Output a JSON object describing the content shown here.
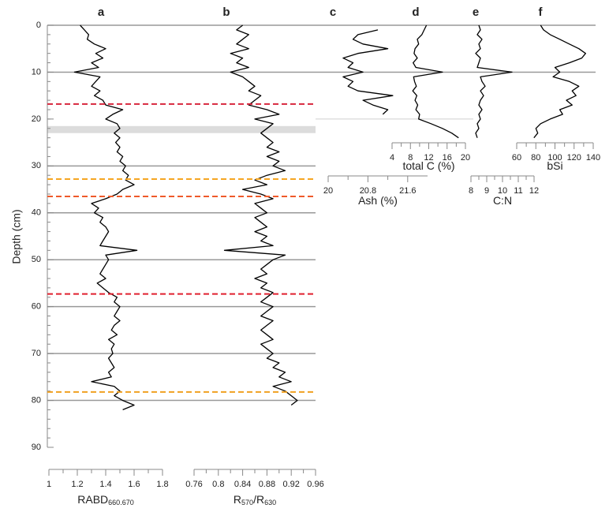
{
  "chart_data": [
    {
      "type": "line",
      "title": "a",
      "xlabel": [
        {
          "text": "RABD",
          "sub": false
        },
        {
          "text": "660.670",
          "sub": true
        }
      ],
      "xlim": [
        1,
        1.8
      ],
      "xticks": [
        1,
        1.2,
        1.4,
        1.6,
        1.8
      ],
      "color": "#000000",
      "depth": [
        0,
        1,
        2,
        3,
        4,
        5,
        6,
        7,
        8,
        9,
        10,
        11,
        12,
        13,
        14,
        15,
        16,
        17,
        18,
        19,
        20,
        21,
        22,
        23,
        24,
        25,
        26,
        27,
        28,
        29,
        30,
        31,
        32,
        33,
        34,
        35,
        36,
        37,
        38,
        39,
        40,
        41,
        42,
        43,
        44,
        45,
        46,
        47,
        48,
        49,
        50,
        51,
        52,
        53,
        54,
        55,
        56,
        57,
        58,
        59,
        60,
        61,
        62,
        63,
        64,
        65,
        66,
        67,
        68,
        69,
        70,
        71,
        72,
        73,
        74,
        75,
        76,
        77,
        78,
        79,
        80,
        81,
        82
      ],
      "values": [
        1.22,
        1.25,
        1.28,
        1.27,
        1.32,
        1.4,
        1.33,
        1.38,
        1.3,
        1.35,
        1.18,
        1.36,
        1.33,
        1.3,
        1.36,
        1.32,
        1.38,
        1.4,
        1.52,
        1.45,
        1.4,
        1.48,
        1.5,
        1.46,
        1.5,
        1.47,
        1.5,
        1.48,
        1.52,
        1.5,
        1.54,
        1.52,
        1.56,
        1.54,
        1.6,
        1.52,
        1.48,
        1.4,
        1.3,
        1.35,
        1.32,
        1.38,
        1.36,
        1.4,
        1.42,
        1.4,
        1.38,
        1.36,
        1.62,
        1.4,
        1.42,
        1.4,
        1.38,
        1.36,
        1.4,
        1.34,
        1.38,
        1.42,
        1.48,
        1.46,
        1.5,
        1.48,
        1.46,
        1.5,
        1.46,
        1.44,
        1.48,
        1.42,
        1.46,
        1.44,
        1.45,
        1.42,
        1.44,
        1.46,
        1.42,
        1.44,
        1.3,
        1.46,
        1.5,
        1.46,
        1.52,
        1.6,
        1.52
      ]
    },
    {
      "type": "line",
      "title": "b",
      "xlabel": [
        {
          "text": "R",
          "sub": false
        },
        {
          "text": "570",
          "sub": true
        },
        {
          "text": "/R",
          "sub": false
        },
        {
          "text": "630",
          "sub": true
        }
      ],
      "xlim": [
        0.76,
        0.96
      ],
      "xticks": [
        0.76,
        0.8,
        0.84,
        0.88,
        0.92,
        0.96
      ],
      "color": "#000000",
      "depth": [
        0,
        1,
        2,
        3,
        4,
        5,
        6,
        7,
        8,
        9,
        10,
        11,
        12,
        13,
        14,
        15,
        16,
        17,
        18,
        19,
        20,
        21,
        22,
        23,
        24,
        25,
        26,
        27,
        28,
        29,
        30,
        31,
        32,
        33,
        34,
        35,
        36,
        37,
        38,
        39,
        40,
        41,
        42,
        43,
        44,
        45,
        46,
        47,
        48,
        49,
        50,
        51,
        52,
        53,
        54,
        55,
        56,
        57,
        58,
        59,
        60,
        61,
        62,
        63,
        64,
        65,
        66,
        67,
        68,
        69,
        70,
        71,
        72,
        73,
        74,
        75,
        76,
        77,
        78,
        79,
        80,
        81
      ],
      "values": [
        0.84,
        0.83,
        0.85,
        0.84,
        0.83,
        0.85,
        0.82,
        0.84,
        0.83,
        0.85,
        0.82,
        0.84,
        0.85,
        0.86,
        0.85,
        0.87,
        0.86,
        0.85,
        0.88,
        0.9,
        0.86,
        0.89,
        0.88,
        0.87,
        0.88,
        0.89,
        0.88,
        0.9,
        0.88,
        0.9,
        0.89,
        0.91,
        0.88,
        0.86,
        0.88,
        0.84,
        0.87,
        0.89,
        0.86,
        0.87,
        0.88,
        0.86,
        0.87,
        0.88,
        0.86,
        0.88,
        0.87,
        0.89,
        0.81,
        0.91,
        0.89,
        0.88,
        0.87,
        0.88,
        0.86,
        0.88,
        0.87,
        0.89,
        0.88,
        0.87,
        0.89,
        0.88,
        0.87,
        0.89,
        0.88,
        0.87,
        0.88,
        0.89,
        0.87,
        0.88,
        0.89,
        0.88,
        0.9,
        0.89,
        0.91,
        0.9,
        0.92,
        0.89,
        0.91,
        0.92,
        0.93,
        0.92
      ]
    },
    {
      "type": "line",
      "title": "c",
      "xlabel": [
        {
          "text": "Ash (%)",
          "sub": false
        }
      ],
      "xlim": [
        20,
        22
      ],
      "xticks": [
        20,
        20.8,
        21.6
      ],
      "color": "#000000",
      "depth": [
        1,
        2,
        3,
        4,
        5,
        6,
        7,
        8,
        9,
        10,
        11,
        12,
        13,
        14,
        15,
        16,
        17,
        18,
        19
      ],
      "values": [
        21.0,
        20.6,
        20.5,
        20.7,
        21.2,
        20.6,
        20.3,
        20.5,
        20.4,
        20.7,
        20.3,
        20.5,
        20.4,
        20.6,
        21.3,
        20.7,
        20.9,
        21.2,
        21.1
      ]
    },
    {
      "type": "line",
      "title": "d",
      "xlabel": [
        {
          "text": "total C (%)",
          "sub": false
        }
      ],
      "xlim": [
        4,
        20
      ],
      "xticks": [
        4,
        8,
        12,
        16,
        20
      ],
      "color": "#000000",
      "depth": [
        0,
        1,
        2,
        3,
        4,
        5,
        6,
        7,
        8,
        9,
        10,
        11,
        12,
        13,
        14,
        15,
        16,
        17,
        18,
        19,
        20,
        21,
        22,
        23,
        24
      ],
      "values": [
        11.5,
        11.0,
        10.5,
        9.5,
        9.8,
        9.0,
        8.8,
        9.5,
        8.6,
        9.2,
        15.0,
        8.7,
        8.9,
        9.3,
        8.5,
        9.4,
        9.0,
        9.6,
        9.2,
        10.0,
        9.8,
        12.5,
        15.0,
        17.0,
        18.5
      ]
    },
    {
      "type": "line",
      "title": "e",
      "xlabel": [
        {
          "text": "C:N",
          "sub": false
        }
      ],
      "xlim": [
        8,
        12
      ],
      "xticks": [
        8,
        9,
        10,
        11,
        12
      ],
      "color": "#000000",
      "depth": [
        0,
        1,
        2,
        3,
        4,
        5,
        6,
        7,
        8,
        9,
        10,
        11,
        12,
        13,
        14,
        15,
        16,
        17,
        18,
        19,
        20,
        21,
        22,
        23,
        24
      ],
      "values": [
        8.5,
        8.6,
        8.4,
        8.7,
        8.5,
        8.6,
        8.3,
        8.6,
        8.5,
        8.4,
        10.6,
        8.6,
        8.7,
        8.9,
        8.6,
        8.8,
        8.6,
        8.5,
        8.7,
        8.5,
        8.6,
        8.4,
        8.5,
        8.3,
        8.4
      ]
    },
    {
      "type": "line",
      "title": "f",
      "xlabel": [
        {
          "text": "bSi",
          "sub": false
        }
      ],
      "xlim": [
        60,
        140
      ],
      "xticks": [
        60,
        80,
        100,
        120,
        140
      ],
      "color": "#000000",
      "depth": [
        0,
        1,
        2,
        3,
        4,
        5,
        6,
        7,
        8,
        9,
        10,
        11,
        12,
        13,
        14,
        15,
        16,
        17,
        18,
        19,
        20,
        21,
        22,
        23,
        24
      ],
      "values": [
        85,
        88,
        95,
        105,
        115,
        125,
        132,
        128,
        115,
        100,
        105,
        98,
        115,
        125,
        118,
        122,
        112,
        118,
        105,
        108,
        95,
        85,
        80,
        82,
        78
      ]
    }
  ],
  "depth_axis": {
    "label": "Depth (cm)",
    "ylim": [
      0,
      90
    ],
    "yticks": [
      0,
      10,
      20,
      30,
      40,
      50,
      60,
      70,
      80,
      90
    ]
  },
  "ref_depths": [
    0,
    10,
    20,
    30,
    40,
    50,
    60,
    70,
    80
  ],
  "band": [
    21.5,
    23
  ],
  "dashed_lines": [
    {
      "depth": 16.8,
      "color": "#d7263d"
    },
    {
      "depth": 32.8,
      "color": "#f5a623"
    },
    {
      "depth": 36.5,
      "color": "#ef5a2a"
    },
    {
      "depth": 57.3,
      "color": "#e0202f"
    },
    {
      "depth": 78.2,
      "color": "#f0a020"
    }
  ]
}
